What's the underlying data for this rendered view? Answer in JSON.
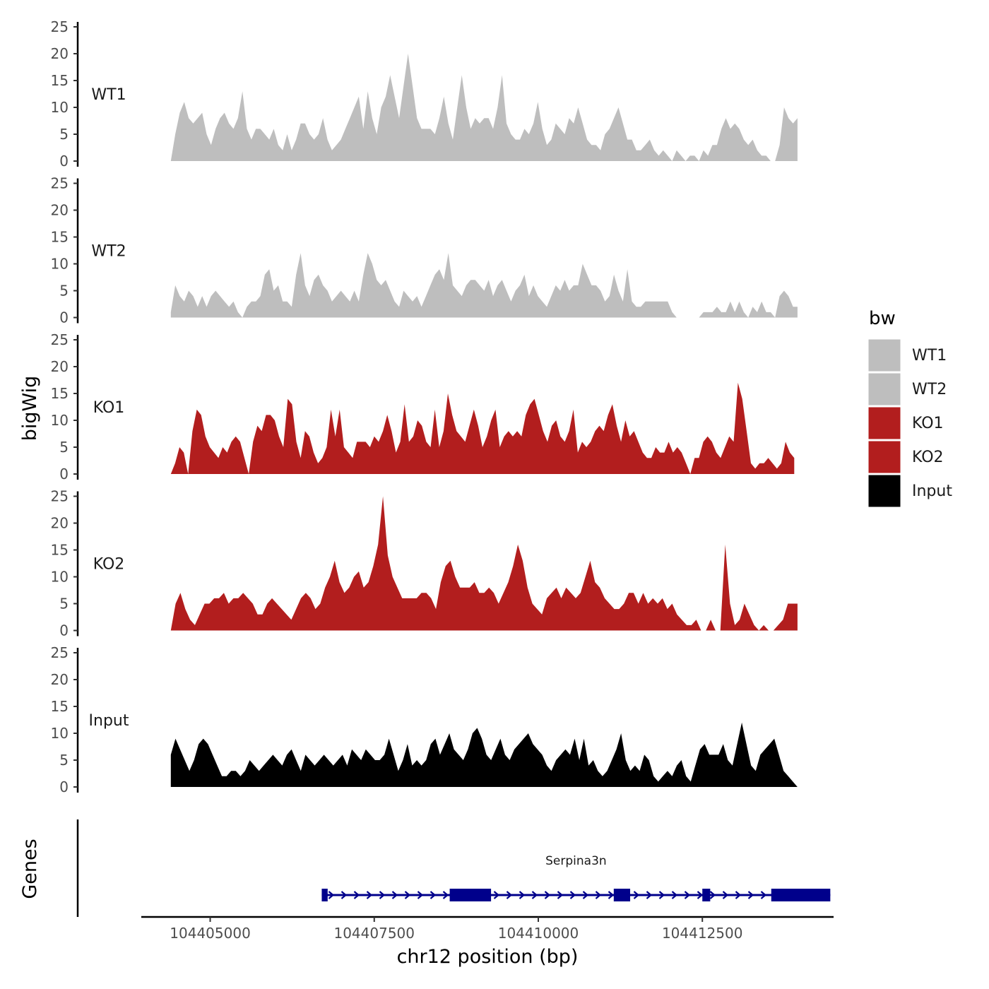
{
  "chart_data": {
    "type": "area",
    "xlabel": "chr12 position (bp)",
    "ylabel": "bigWig",
    "genes_label": "Genes",
    "xlim": [
      104403950,
      104414500
    ],
    "x_ticks": [
      104405000,
      104407500,
      104410000,
      104412500
    ],
    "x_tick_labels": [
      "104405000",
      "104407500",
      "104410000",
      "104412500"
    ],
    "ylim": [
      0,
      25
    ],
    "y_ticks": [
      0,
      5,
      10,
      15,
      20,
      25
    ],
    "y_tick_labels": [
      "0",
      "5",
      "10",
      "15",
      "20",
      "25"
    ],
    "legend": {
      "title": "bw",
      "position": "right",
      "entries": [
        {
          "label": "WT1",
          "color": "#bebebe"
        },
        {
          "label": "WT2",
          "color": "#bebebe"
        },
        {
          "label": "KO1",
          "color": "#b21e1e"
        },
        {
          "label": "KO2",
          "color": "#b21e1e"
        },
        {
          "label": "Input",
          "color": "#000000"
        }
      ]
    },
    "series": [
      {
        "name": "WT1",
        "color": "#bebebe",
        "x_start": 104404400,
        "x_end": 104413950,
        "values": [
          0,
          5,
          9,
          11,
          8,
          7,
          8,
          9,
          5,
          3,
          6,
          8,
          9,
          7,
          6,
          8,
          13,
          6,
          4,
          6,
          6,
          5,
          4,
          6,
          3,
          2,
          5,
          2,
          4,
          7,
          7,
          5,
          4,
          5,
          8,
          4,
          2,
          3,
          4,
          6,
          8,
          10,
          12,
          6,
          13,
          8,
          5,
          10,
          12,
          16,
          12,
          8,
          14,
          20,
          14,
          8,
          6,
          6,
          6,
          5,
          8,
          12,
          7,
          4,
          10,
          16,
          10,
          6,
          8,
          7,
          8,
          8,
          6,
          10,
          16,
          7,
          5,
          4,
          4,
          6,
          5,
          7,
          11,
          6,
          3,
          4,
          7,
          6,
          5,
          8,
          7,
          10,
          7,
          4,
          3,
          3,
          2,
          5,
          6,
          8,
          10,
          7,
          4,
          4,
          2,
          2,
          3,
          4,
          2,
          1,
          2,
          1,
          0,
          2,
          1,
          0,
          1,
          1,
          0,
          2,
          1,
          3,
          3,
          6,
          8,
          6,
          7,
          6,
          4,
          3,
          4,
          2,
          1,
          1,
          0,
          0,
          3,
          10,
          8,
          7,
          8
        ]
      },
      {
        "name": "WT2",
        "color": "#bebebe",
        "x_start": 104404400,
        "x_end": 104413950,
        "values": [
          1,
          6,
          4,
          3,
          5,
          4,
          2,
          4,
          2,
          4,
          5,
          4,
          3,
          2,
          3,
          1,
          0,
          2,
          3,
          3,
          4,
          8,
          9,
          5,
          6,
          3,
          3,
          2,
          8,
          12,
          6,
          4,
          7,
          8,
          6,
          5,
          3,
          4,
          5,
          4,
          3,
          5,
          3,
          8,
          12,
          10,
          7,
          6,
          7,
          5,
          3,
          2,
          5,
          4,
          3,
          4,
          2,
          4,
          6,
          8,
          9,
          7,
          12,
          6,
          5,
          4,
          6,
          7,
          7,
          6,
          5,
          7,
          4,
          6,
          7,
          5,
          3,
          5,
          6,
          8,
          4,
          6,
          4,
          3,
          2,
          4,
          6,
          5,
          7,
          5,
          6,
          6,
          10,
          8,
          6,
          6,
          5,
          3,
          4,
          8,
          5,
          3,
          9,
          3,
          2,
          2,
          3,
          3,
          3,
          3,
          3,
          3,
          1,
          0,
          0,
          0,
          0,
          0,
          0,
          1,
          1,
          1,
          2,
          1,
          1,
          3,
          1,
          3,
          1,
          0,
          2,
          1,
          3,
          1,
          1,
          0,
          4,
          5,
          4,
          2,
          2
        ]
      },
      {
        "name": "KO1",
        "color": "#b21e1e",
        "x_start": 104404400,
        "x_end": 104413900,
        "values": [
          0,
          2,
          5,
          4,
          0,
          8,
          12,
          11,
          7,
          5,
          4,
          3,
          5,
          4,
          6,
          7,
          6,
          3,
          0,
          6,
          9,
          8,
          11,
          11,
          10,
          7,
          5,
          14,
          13,
          6,
          3,
          8,
          7,
          4,
          2,
          3,
          5,
          12,
          7,
          12,
          5,
          4,
          3,
          6,
          6,
          6,
          5,
          7,
          6,
          8,
          11,
          8,
          4,
          6,
          13,
          6,
          7,
          10,
          9,
          6,
          5,
          12,
          5,
          8,
          15,
          11,
          8,
          7,
          6,
          9,
          12,
          9,
          5,
          7,
          10,
          12,
          5,
          7,
          8,
          7,
          8,
          7,
          11,
          13,
          14,
          11,
          8,
          6,
          9,
          10,
          7,
          6,
          8,
          12,
          4,
          6,
          5,
          6,
          8,
          9,
          8,
          11,
          13,
          9,
          6,
          10,
          7,
          8,
          6,
          4,
          3,
          3,
          5,
          4,
          4,
          6,
          4,
          5,
          4,
          2,
          0,
          3,
          3,
          6,
          7,
          6,
          4,
          3,
          5,
          7,
          6,
          17,
          14,
          8,
          2,
          1,
          2,
          2,
          3,
          2,
          1,
          2,
          6,
          4,
          3
        ]
      },
      {
        "name": "KO2",
        "color": "#b21e1e",
        "x_start": 104404400,
        "x_end": 104413950,
        "values": [
          0,
          5,
          7,
          4,
          2,
          1,
          3,
          5,
          5,
          6,
          6,
          7,
          5,
          6,
          6,
          7,
          6,
          5,
          3,
          3,
          5,
          6,
          5,
          4,
          3,
          2,
          4,
          6,
          7,
          6,
          4,
          5,
          8,
          10,
          13,
          9,
          7,
          8,
          10,
          11,
          8,
          9,
          12,
          16,
          25,
          14,
          10,
          8,
          6,
          6,
          6,
          6,
          7,
          7,
          6,
          4,
          9,
          12,
          13,
          10,
          8,
          8,
          8,
          9,
          7,
          7,
          8,
          7,
          5,
          7,
          9,
          12,
          16,
          13,
          8,
          5,
          4,
          3,
          6,
          7,
          8,
          6,
          8,
          7,
          6,
          7,
          10,
          13,
          9,
          8,
          6,
          5,
          4,
          4,
          5,
          7,
          7,
          5,
          7,
          5,
          6,
          5,
          6,
          4,
          5,
          3,
          2,
          1,
          1,
          2,
          0,
          0,
          2,
          0,
          0,
          16,
          5,
          1,
          2,
          5,
          3,
          1,
          0,
          1,
          0,
          0,
          1,
          2,
          5,
          5,
          5
        ]
      },
      {
        "name": "Input",
        "color": "#000000",
        "x_start": 104404400,
        "x_end": 104413950,
        "values": [
          6,
          9,
          7,
          5,
          3,
          5,
          8,
          9,
          8,
          6,
          4,
          2,
          2,
          3,
          3,
          2,
          3,
          5,
          4,
          3,
          4,
          5,
          6,
          5,
          4,
          6,
          7,
          5,
          3,
          6,
          5,
          4,
          5,
          6,
          5,
          4,
          5,
          6,
          4,
          7,
          6,
          5,
          7,
          6,
          5,
          5,
          6,
          9,
          6,
          3,
          5,
          8,
          4,
          5,
          4,
          5,
          8,
          9,
          6,
          8,
          10,
          7,
          6,
          5,
          7,
          10,
          11,
          9,
          6,
          5,
          7,
          9,
          6,
          5,
          7,
          8,
          9,
          10,
          8,
          7,
          6,
          4,
          3,
          5,
          6,
          7,
          6,
          9,
          5,
          9,
          4,
          5,
          3,
          2,
          3,
          5,
          7,
          10,
          5,
          3,
          4,
          3,
          6,
          5,
          2,
          1,
          2,
          3,
          2,
          4,
          5,
          2,
          1,
          4,
          7,
          8,
          6,
          6,
          6,
          8,
          5,
          4,
          8,
          12,
          8,
          4,
          3,
          6,
          7,
          8,
          9,
          6,
          3,
          2,
          1,
          0
        ]
      }
    ],
    "gene": {
      "name": "Serpina3n",
      "color": "#00008b",
      "strand": "+",
      "start": 104406700,
      "end": 104414450,
      "exons": [
        [
          104406700,
          104406790
        ],
        [
          104408650,
          104409280
        ],
        [
          104411150,
          104411400
        ],
        [
          104412500,
          104412620
        ],
        [
          104413550,
          104414450
        ]
      ]
    }
  }
}
